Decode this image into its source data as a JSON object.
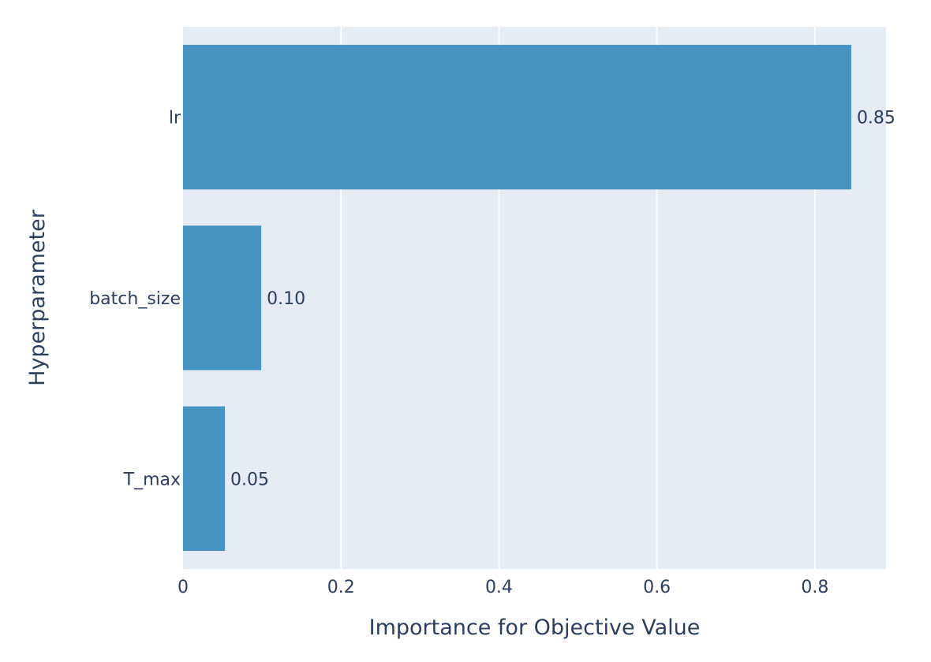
{
  "chart_data": {
    "type": "bar",
    "orientation": "horizontal",
    "categories": [
      "lr",
      "batch_size",
      "T_max"
    ],
    "values": [
      0.846,
      0.099,
      0.053
    ],
    "value_labels": [
      "0.85",
      "0.10",
      "0.05"
    ],
    "title": "",
    "xlabel": "Importance for Objective Value",
    "ylabel": "Hyperparameter",
    "xlim": [
      0,
      0.89
    ],
    "xticks": [
      0,
      0.2,
      0.4,
      0.6,
      0.8
    ],
    "xtick_labels": [
      "0",
      "0.2",
      "0.4",
      "0.6",
      "0.8"
    ],
    "grid": "vertical",
    "legend": "none",
    "colors": {
      "bar": "#4794c3",
      "plot_background": "#e5ecf6",
      "grid": "#ffffff",
      "text": "#2a3f5f"
    }
  }
}
